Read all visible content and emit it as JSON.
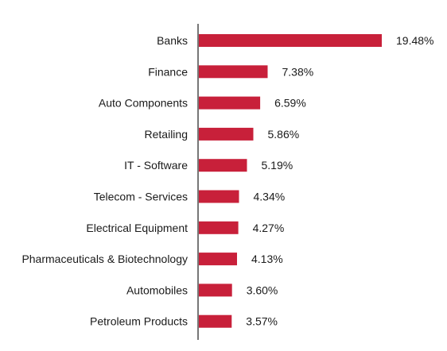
{
  "chart_data": {
    "type": "bar",
    "orientation": "horizontal",
    "categories": [
      "Banks",
      "Finance",
      "Auto Components",
      "Retailing",
      "IT - Software",
      "Telecom - Services",
      "Electrical Equipment",
      "Pharmaceuticals & Biotechnology",
      "Automobiles",
      "Petroleum Products"
    ],
    "values": [
      19.48,
      7.38,
      6.59,
      5.86,
      5.19,
      4.34,
      4.27,
      4.13,
      3.6,
      3.57
    ],
    "data_labels": [
      "19.48%",
      "7.38%",
      "6.59%",
      "5.86%",
      "5.19%",
      "4.34%",
      "4.27%",
      "4.13%",
      "3.60%",
      "3.57%"
    ],
    "title": "",
    "xlabel": "",
    "ylabel": "",
    "xlim": [
      0,
      19.48
    ],
    "grid": false,
    "legend": "none",
    "colors": {
      "bar": "#c8203a",
      "axis": "#777777",
      "text": "#1a1a1a"
    }
  }
}
